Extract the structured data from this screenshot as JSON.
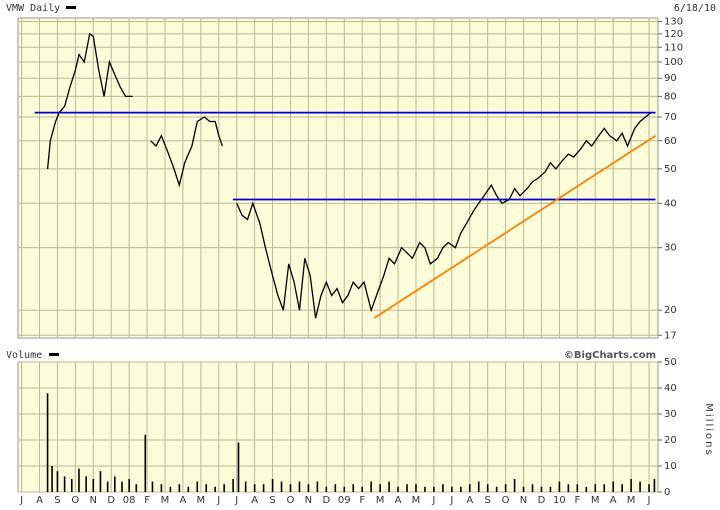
{
  "chart_data": [
    {
      "type": "line",
      "title": "VMW Daily",
      "date": "6/18/10",
      "log_scale": true,
      "grid": true,
      "color": "#000000",
      "background": "#fdfcd8",
      "xlim": [
        -0.2,
        35.5
      ],
      "ylim": [
        16.7,
        133
      ],
      "yticks": [
        17,
        20,
        30,
        40,
        50,
        60,
        70,
        80,
        90,
        100,
        110,
        120,
        130
      ],
      "x": [
        1.45,
        1.6,
        1.9,
        2.1,
        2.4,
        2.7,
        3.0,
        3.2,
        3.5,
        3.8,
        4.0,
        4.3,
        4.6,
        4.9,
        5.2,
        5.5,
        5.8,
        6.2,
        6.6,
        7.2,
        7.5,
        7.8,
        8.2,
        8.5,
        8.8,
        9.1,
        9.5,
        9.8,
        10.2,
        10.5,
        10.8,
        11.0,
        11.2,
        11.6,
        12.0,
        12.3,
        12.6,
        12.9,
        13.3,
        13.6,
        14.0,
        14.3,
        14.6,
        14.9,
        15.2,
        15.5,
        15.8,
        16.1,
        16.4,
        16.7,
        17.0,
        17.3,
        17.6,
        17.9,
        18.2,
        18.5,
        18.8,
        19.1,
        19.5,
        19.8,
        20.2,
        20.5,
        20.8,
        21.2,
        21.5,
        21.8,
        22.2,
        22.5,
        22.8,
        23.2,
        23.5,
        23.8,
        24.2,
        24.5,
        24.8,
        25.2,
        25.5,
        25.8,
        26.2,
        26.5,
        26.8,
        27.2,
        27.5,
        27.8,
        28.2,
        28.5,
        28.8,
        29.2,
        29.5,
        29.8,
        30.2,
        30.5,
        30.8,
        31.2,
        31.5,
        31.8,
        32.2,
        32.5,
        32.8,
        33.2,
        33.5,
        33.8,
        34.2,
        34.5,
        34.8,
        35.1
      ],
      "values": [
        50,
        60,
        68,
        72,
        75,
        85,
        95,
        105,
        100,
        120,
        118,
        95,
        80,
        100,
        92,
        85,
        80,
        80,
        null,
        60,
        58,
        62,
        55,
        50,
        45,
        52,
        58,
        68,
        70,
        68,
        68,
        62,
        58,
        null,
        40,
        37,
        36,
        40,
        35,
        30,
        25,
        22,
        20,
        27,
        24,
        20,
        28,
        25,
        19,
        22,
        24,
        22,
        23,
        21,
        22,
        24,
        23,
        24,
        20,
        22,
        25,
        28,
        27,
        30,
        29,
        28,
        31,
        30,
        27,
        28,
        30,
        31,
        30,
        33,
        35,
        38,
        40,
        42,
        45,
        42,
        40,
        41,
        44,
        42,
        44,
        46,
        47,
        49,
        52,
        50,
        53,
        55,
        54,
        57,
        60,
        58,
        62,
        65,
        62,
        60,
        63,
        58,
        65,
        68,
        70,
        72
      ],
      "lines": [
        {
          "color": "#0000cc",
          "x": [
            0.73,
            35.36
          ],
          "values": [
            72,
            72
          ]
        },
        {
          "color": "#0000cc",
          "x": [
            11.79,
            35.36
          ],
          "values": [
            41,
            41
          ]
        },
        {
          "color": "#ff8000",
          "x": [
            19.67,
            35.36
          ],
          "values": [
            19,
            62
          ]
        }
      ]
    },
    {
      "type": "bar",
      "title": "Volume",
      "source": "©BigCharts.com",
      "y_label": "Millions",
      "grid": true,
      "color": "#000000",
      "background": "#fdfcd8",
      "xlim": [
        -0.2,
        35.5
      ],
      "ylim": [
        0,
        50
      ],
      "yticks": [
        0,
        10,
        20,
        30,
        40,
        50
      ],
      "xticks": [
        {
          "value": 0,
          "label": "J"
        },
        {
          "value": 1,
          "label": "A"
        },
        {
          "value": 2,
          "label": "S"
        },
        {
          "value": 3,
          "label": "O"
        },
        {
          "value": 4,
          "label": "N"
        },
        {
          "value": 5,
          "label": "D"
        },
        {
          "value": 6,
          "label": "08"
        },
        {
          "value": 7,
          "label": "F"
        },
        {
          "value": 8,
          "label": "M"
        },
        {
          "value": 9,
          "label": "A"
        },
        {
          "value": 10,
          "label": "M"
        },
        {
          "value": 11,
          "label": "J"
        },
        {
          "value": 12,
          "label": "J"
        },
        {
          "value": 13,
          "label": "A"
        },
        {
          "value": 14,
          "label": "S"
        },
        {
          "value": 15,
          "label": "O"
        },
        {
          "value": 16,
          "label": "N"
        },
        {
          "value": 17,
          "label": "D"
        },
        {
          "value": 18,
          "label": "09"
        },
        {
          "value": 19,
          "label": "F"
        },
        {
          "value": 20,
          "label": "M"
        },
        {
          "value": 21,
          "label": "A"
        },
        {
          "value": 22,
          "label": "M"
        },
        {
          "value": 23,
          "label": "J"
        },
        {
          "value": 24,
          "label": "J"
        },
        {
          "value": 25,
          "label": "A"
        },
        {
          "value": 26,
          "label": "S"
        },
        {
          "value": 27,
          "label": "O"
        },
        {
          "value": 28,
          "label": "N"
        },
        {
          "value": 29,
          "label": "D"
        },
        {
          "value": 30,
          "label": "10"
        },
        {
          "value": 31,
          "label": "F"
        },
        {
          "value": 32,
          "label": "M"
        },
        {
          "value": 33,
          "label": "A"
        },
        {
          "value": 34,
          "label": "M"
        },
        {
          "value": 35,
          "label": "J"
        }
      ],
      "x": [
        1.45,
        1.7,
        2.0,
        2.4,
        2.8,
        3.2,
        3.6,
        4.0,
        4.4,
        4.8,
        5.2,
        5.6,
        6.0,
        6.4,
        6.9,
        7.3,
        7.8,
        8.3,
        8.8,
        9.3,
        9.8,
        10.3,
        10.8,
        11.3,
        11.8,
        12.1,
        12.5,
        13.0,
        13.5,
        14.0,
        14.5,
        15.0,
        15.5,
        16.0,
        16.5,
        17.0,
        17.5,
        18.0,
        18.5,
        19.0,
        19.5,
        20.0,
        20.5,
        21.0,
        21.5,
        22.0,
        22.5,
        23.0,
        23.5,
        24.0,
        24.5,
        25.0,
        25.5,
        26.0,
        26.5,
        27.0,
        27.5,
        28.0,
        28.5,
        29.0,
        29.5,
        30.0,
        30.5,
        31.0,
        31.5,
        32.0,
        32.5,
        33.0,
        33.5,
        34.0,
        34.5,
        35.0,
        35.3
      ],
      "values": [
        38,
        10,
        8,
        6,
        5,
        9,
        6,
        5,
        8,
        4,
        6,
        4,
        5,
        3,
        22,
        4,
        3,
        2,
        3,
        2,
        4,
        3,
        2,
        3,
        5,
        19,
        4,
        3,
        3,
        5,
        4,
        3,
        4,
        3,
        4,
        2,
        3,
        2,
        3,
        2,
        4,
        3,
        4,
        2,
        3,
        3,
        2,
        2,
        3,
        2,
        2,
        3,
        4,
        3,
        2,
        3,
        5,
        2,
        3,
        2,
        2,
        4,
        3,
        3,
        2,
        3,
        3,
        4,
        3,
        5,
        4,
        3,
        5
      ]
    }
  ]
}
